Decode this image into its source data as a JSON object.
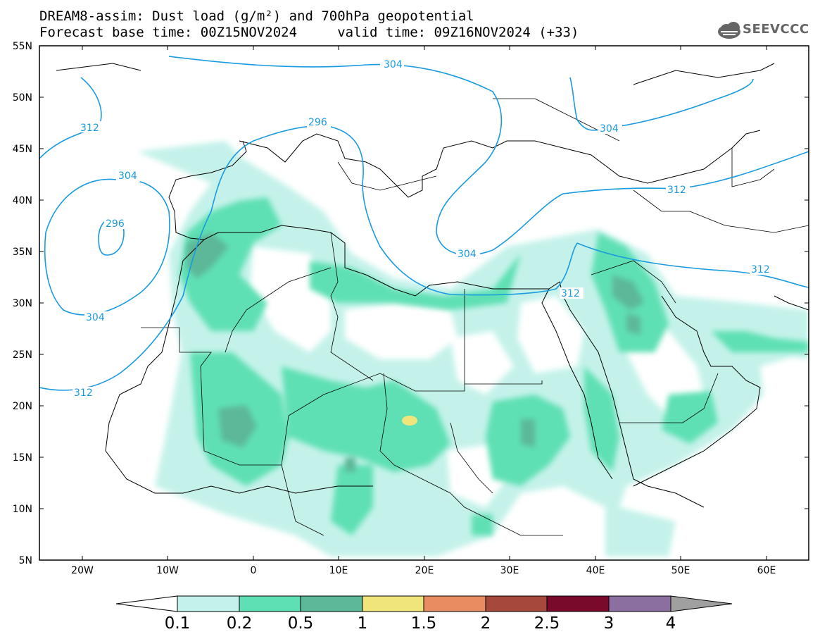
{
  "title": {
    "line1": "DREAM8-assim: Dust load (g/m²) and 700hPa geopotential",
    "line2": "Forecast base time: 00Z15NOV2024     valid time: 09Z16NOV2024 (+33)"
  },
  "logo": {
    "text": "SEEVCCC",
    "icon": "cloud-logo-icon"
  },
  "map": {
    "lon_range": [
      -25,
      65
    ],
    "lat_range": [
      5,
      55
    ],
    "lat_ticks": [
      "55N",
      "50N",
      "45N",
      "40N",
      "35N",
      "30N",
      "25N",
      "20N",
      "15N",
      "10N",
      "5N"
    ],
    "lon_ticks": [
      "20W",
      "10W",
      "0",
      "10E",
      "20E",
      "30E",
      "40E",
      "50E",
      "60E"
    ],
    "contour_labels": [
      "304",
      "312",
      "296",
      "304",
      "312",
      "304",
      "296",
      "304",
      "312",
      "312",
      "304",
      "312"
    ]
  },
  "colorbar": {
    "levels": [
      "0.1",
      "0.2",
      "0.5",
      "1",
      "1.5",
      "2",
      "2.5",
      "3",
      "4"
    ],
    "colors": [
      "#c4f2ea",
      "#5ee0b4",
      "#5cb899",
      "#f0e57a",
      "#e88c62",
      "#a6493c",
      "#7a0a2c",
      "#8b6fa0"
    ],
    "under_color": "#ffffff",
    "over_color": "#a0a0a0"
  }
}
